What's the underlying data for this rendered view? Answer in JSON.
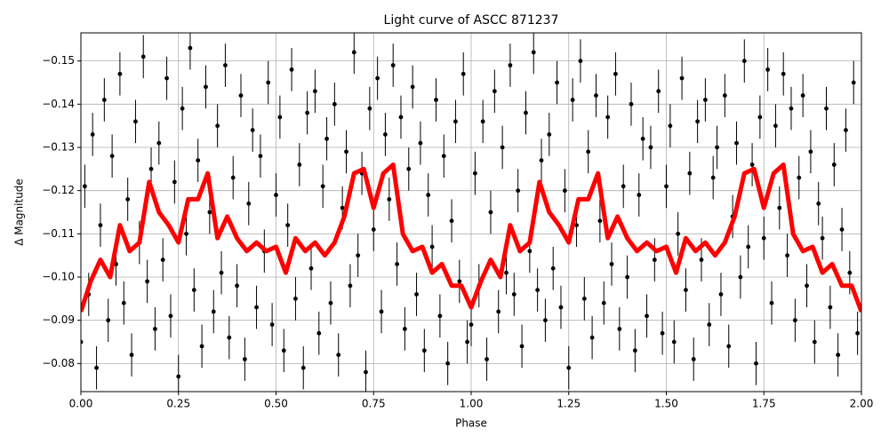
{
  "chart_data": {
    "type": "scatter",
    "title": "Light curve of ASCC 871237",
    "x_label": "Phase",
    "y_label": "Δ Magnitude",
    "xlim": [
      0,
      2
    ],
    "ylim": [
      -0.0735,
      -0.1565
    ],
    "xticks": [
      {
        "value": 0,
        "label": "0.00"
      },
      {
        "value": 0.25,
        "label": "0.25"
      },
      {
        "value": 0.5,
        "label": "0.50"
      },
      {
        "value": 0.75,
        "label": "0.75"
      },
      {
        "value": 1,
        "label": "1.00"
      },
      {
        "value": 1.25,
        "label": "1.25"
      },
      {
        "value": 1.5,
        "label": "1.50"
      },
      {
        "value": 1.75,
        "label": "1.75"
      },
      {
        "value": 2,
        "label": "2.00"
      }
    ],
    "yticks": [
      {
        "value": -0.08,
        "label": "−0.08"
      },
      {
        "value": -0.09,
        "label": "−0.09"
      },
      {
        "value": -0.1,
        "label": "−0.10"
      },
      {
        "value": -0.11,
        "label": "−0.11"
      },
      {
        "value": -0.12,
        "label": "−0.12"
      },
      {
        "value": -0.13,
        "label": "−0.13"
      },
      {
        "value": -0.14,
        "label": "−0.14"
      },
      {
        "value": -0.15,
        "label": "−0.15"
      }
    ],
    "grid": true,
    "color": "#000000",
    "error": 0.005,
    "x": [
      0.0,
      0.01,
      0.02,
      0.03,
      0.04,
      0.05,
      0.06,
      0.07,
      0.08,
      0.09,
      0.1,
      0.11,
      0.12,
      0.13,
      0.14,
      0.15,
      0.16,
      0.17,
      0.18,
      0.19,
      0.2,
      0.21,
      0.22,
      0.23,
      0.24,
      0.25,
      0.26,
      0.27,
      0.28,
      0.29,
      0.3,
      0.31,
      0.32,
      0.33,
      0.34,
      0.35,
      0.36,
      0.37,
      0.38,
      0.39,
      0.4,
      0.41,
      0.42,
      0.43,
      0.44,
      0.45,
      0.46,
      0.47,
      0.48,
      0.49,
      0.5,
      0.51,
      0.52,
      0.53,
      0.54,
      0.55,
      0.56,
      0.57,
      0.58,
      0.59,
      0.6,
      0.61,
      0.62,
      0.63,
      0.64,
      0.65,
      0.66,
      0.67,
      0.68,
      0.69,
      0.7,
      0.71,
      0.72,
      0.73,
      0.74,
      0.75,
      0.76,
      0.77,
      0.78,
      0.79,
      0.8,
      0.81,
      0.82,
      0.83,
      0.84,
      0.85,
      0.86,
      0.87,
      0.88,
      0.89,
      0.9,
      0.91,
      0.92,
      0.93,
      0.94,
      0.95,
      0.96,
      0.97,
      0.98,
      0.99,
      1.0,
      1.01,
      1.02,
      1.03,
      1.04,
      1.05,
      1.06,
      1.07,
      1.08,
      1.09,
      1.1,
      1.11,
      1.12,
      1.13,
      1.14,
      1.15,
      1.16,
      1.17,
      1.18,
      1.19,
      1.2,
      1.21,
      1.22,
      1.23,
      1.24,
      1.25,
      1.26,
      1.27,
      1.28,
      1.29,
      1.3,
      1.31,
      1.32,
      1.33,
      1.34,
      1.35,
      1.36,
      1.37,
      1.38,
      1.39,
      1.4,
      1.41,
      1.42,
      1.43,
      1.44,
      1.45,
      1.46,
      1.47,
      1.48,
      1.49,
      1.5,
      1.51,
      1.52,
      1.53,
      1.54,
      1.55,
      1.56,
      1.57,
      1.58,
      1.59,
      1.6,
      1.61,
      1.62,
      1.63,
      1.64,
      1.65,
      1.66,
      1.67,
      1.68,
      1.69,
      1.7,
      1.71,
      1.72,
      1.73,
      1.74,
      1.75,
      1.76,
      1.77,
      1.78,
      1.79,
      1.8,
      1.81,
      1.82,
      1.83,
      1.84,
      1.85,
      1.86,
      1.87,
      1.88,
      1.89,
      1.9,
      1.91,
      1.92,
      1.93,
      1.94,
      1.95,
      1.96,
      1.97,
      1.98,
      1.99
    ],
    "values": [
      -0.085,
      -0.121,
      -0.096,
      -0.133,
      -0.079,
      -0.112,
      -0.141,
      -0.09,
      -0.128,
      -0.103,
      -0.147,
      -0.094,
      -0.118,
      -0.082,
      -0.136,
      -0.108,
      -0.151,
      -0.099,
      -0.125,
      -0.088,
      -0.131,
      -0.104,
      -0.146,
      -0.091,
      -0.122,
      -0.077,
      -0.139,
      -0.11,
      -0.153,
      -0.097,
      -0.127,
      -0.084,
      -0.144,
      -0.115,
      -0.092,
      -0.135,
      -0.101,
      -0.149,
      -0.086,
      -0.123,
      -0.098,
      -0.142,
      -0.081,
      -0.117,
      -0.134,
      -0.093,
      -0.128,
      -0.106,
      -0.145,
      -0.089,
      -0.119,
      -0.137,
      -0.083,
      -0.112,
      -0.148,
      -0.095,
      -0.126,
      -0.079,
      -0.138,
      -0.102,
      -0.143,
      -0.087,
      -0.121,
      -0.132,
      -0.094,
      -0.14,
      -0.082,
      -0.116,
      -0.129,
      -0.098,
      -0.152,
      -0.105,
      -0.124,
      -0.078,
      -0.139,
      -0.111,
      -0.146,
      -0.092,
      -0.133,
      -0.118,
      -0.149,
      -0.103,
      -0.137,
      -0.088,
      -0.125,
      -0.144,
      -0.096,
      -0.131,
      -0.083,
      -0.119,
      -0.107,
      -0.141,
      -0.091,
      -0.128,
      -0.08,
      -0.113,
      -0.136,
      -0.099,
      -0.147,
      -0.085,
      -0.089,
      -0.124,
      -0.098,
      -0.136,
      -0.081,
      -0.115,
      -0.143,
      -0.092,
      -0.13,
      -0.101,
      -0.149,
      -0.096,
      -0.12,
      -0.084,
      -0.138,
      -0.106,
      -0.152,
      -0.097,
      -0.127,
      -0.09,
      -0.133,
      -0.102,
      -0.145,
      -0.093,
      -0.12,
      -0.079,
      -0.141,
      -0.112,
      -0.15,
      -0.095,
      -0.129,
      -0.086,
      -0.142,
      -0.113,
      -0.094,
      -0.137,
      -0.103,
      -0.147,
      -0.088,
      -0.121,
      -0.1,
      -0.14,
      -0.083,
      -0.119,
      -0.132,
      -0.091,
      -0.13,
      -0.104,
      -0.143,
      -0.087,
      -0.121,
      -0.135,
      -0.085,
      -0.11,
      -0.146,
      -0.097,
      -0.124,
      -0.081,
      -0.136,
      -0.104,
      -0.141,
      -0.089,
      -0.123,
      -0.13,
      -0.096,
      -0.142,
      -0.084,
      -0.114,
      -0.131,
      -0.1,
      -0.15,
      -0.107,
      -0.126,
      -0.08,
      -0.137,
      -0.109,
      -0.148,
      -0.094,
      -0.135,
      -0.116,
      -0.147,
      -0.105,
      -0.139,
      -0.09,
      -0.123,
      -0.142,
      -0.098,
      -0.129,
      -0.085,
      -0.117,
      -0.109,
      -0.139,
      -0.093,
      -0.126,
      -0.082,
      -0.111,
      -0.134,
      -0.101,
      -0.145,
      -0.087
    ],
    "fit": {
      "type": "line",
      "color": "#ff0000",
      "x": [
        0,
        0.025,
        0.05,
        0.075,
        0.1,
        0.125,
        0.15,
        0.175,
        0.2,
        0.225,
        0.25,
        0.275,
        0.3,
        0.325,
        0.35,
        0.375,
        0.4,
        0.425,
        0.45,
        0.475,
        0.5,
        0.525,
        0.55,
        0.575,
        0.6,
        0.625,
        0.65,
        0.675,
        0.7,
        0.725,
        0.75,
        0.775,
        0.8,
        0.825,
        0.85,
        0.875,
        0.9,
        0.925,
        0.95,
        0.975,
        1,
        1.025,
        1.05,
        1.075,
        1.1,
        1.125,
        1.15,
        1.175,
        1.2,
        1.225,
        1.25,
        1.275,
        1.3,
        1.325,
        1.35,
        1.375,
        1.4,
        1.425,
        1.45,
        1.475,
        1.5,
        1.525,
        1.55,
        1.575,
        1.6,
        1.625,
        1.65,
        1.675,
        1.7,
        1.725,
        1.75,
        1.775,
        1.8,
        1.825,
        1.85,
        1.875,
        1.9,
        1.925,
        1.95,
        1.975,
        2
      ],
      "values": [
        -0.092,
        -0.099,
        -0.104,
        -0.1,
        -0.112,
        -0.106,
        -0.108,
        -0.122,
        -0.115,
        -0.112,
        -0.108,
        -0.118,
        -0.118,
        -0.124,
        -0.109,
        -0.114,
        -0.109,
        -0.106,
        -0.108,
        -0.106,
        -0.107,
        -0.101,
        -0.109,
        -0.106,
        -0.108,
        -0.105,
        -0.108,
        -0.114,
        -0.124,
        -0.125,
        -0.116,
        -0.124,
        -0.126,
        -0.11,
        -0.106,
        -0.107,
        -0.101,
        -0.103,
        -0.098,
        -0.098,
        -0.093,
        -0.099,
        -0.104,
        -0.1,
        -0.112,
        -0.106,
        -0.108,
        -0.122,
        -0.115,
        -0.112,
        -0.108,
        -0.118,
        -0.118,
        -0.124,
        -0.109,
        -0.114,
        -0.109,
        -0.106,
        -0.108,
        -0.106,
        -0.107,
        -0.101,
        -0.109,
        -0.106,
        -0.108,
        -0.105,
        -0.108,
        -0.114,
        -0.124,
        -0.125,
        -0.116,
        -0.124,
        -0.126,
        -0.11,
        -0.106,
        -0.107,
        -0.101,
        -0.103,
        -0.098,
        -0.098,
        -0.092
      ]
    }
  }
}
